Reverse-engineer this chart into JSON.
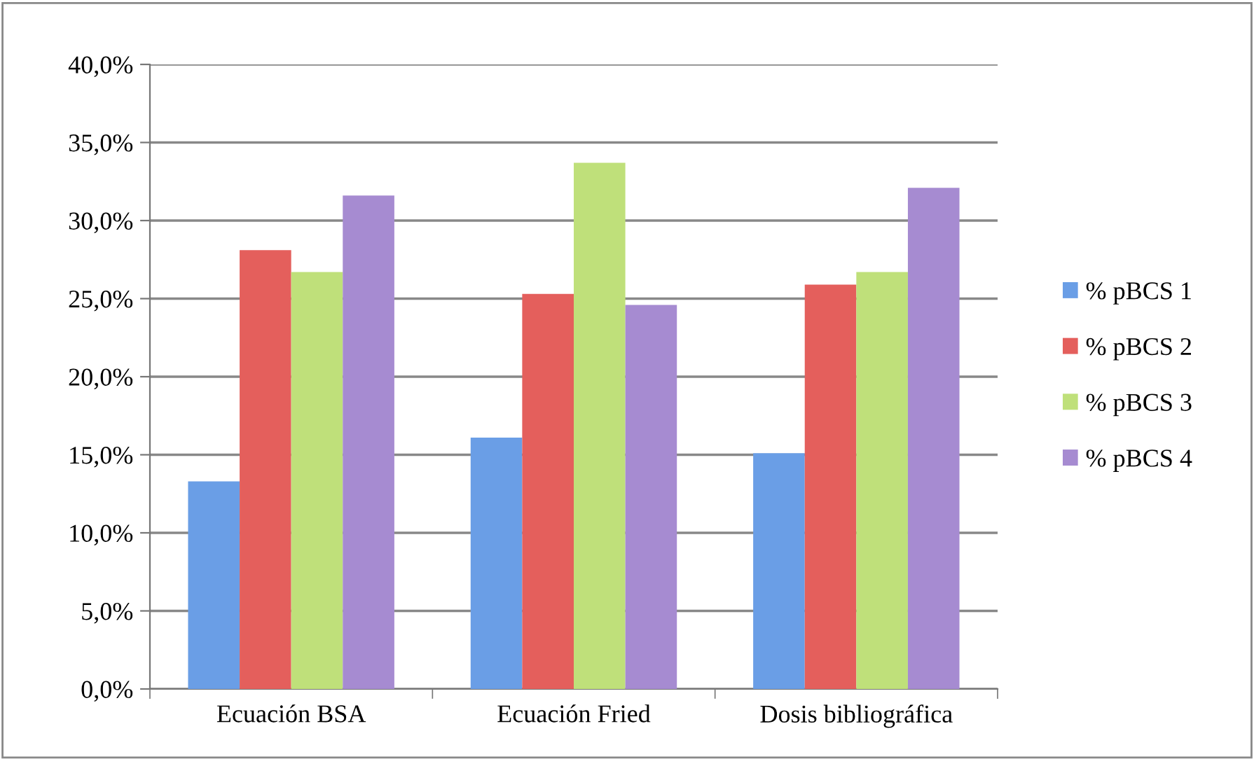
{
  "chart_data": {
    "type": "bar",
    "categories": [
      "Ecuación BSA",
      "Ecuación Fried",
      "Dosis bibliográfica"
    ],
    "series": [
      {
        "name": "% pBCS 1",
        "color": "#6a9ee6",
        "values": [
          13.3,
          16.1,
          15.1
        ]
      },
      {
        "name": "% pBCS 2",
        "color": "#e45f5c",
        "values": [
          28.1,
          25.3,
          25.9
        ]
      },
      {
        "name": "% pBCS 3",
        "color": "#bfe07a",
        "values": [
          26.7,
          33.7,
          26.7
        ]
      },
      {
        "name": "% pBCS 4",
        "color": "#a68bd1",
        "values": [
          31.6,
          24.6,
          32.1
        ]
      }
    ],
    "ylim": [
      0,
      40
    ],
    "yticks": [
      {
        "value": 0,
        "label": "0,0%"
      },
      {
        "value": 5,
        "label": "5,0%"
      },
      {
        "value": 10,
        "label": "10,0%"
      },
      {
        "value": 15,
        "label": "15,0%"
      },
      {
        "value": 20,
        "label": "20,0%"
      },
      {
        "value": 25,
        "label": "25,0%"
      },
      {
        "value": 30,
        "label": "30,0%"
      },
      {
        "value": 35,
        "label": "35,0%"
      },
      {
        "value": 40,
        "label": "40,0%"
      }
    ],
    "grid": "y",
    "legend": "right"
  }
}
